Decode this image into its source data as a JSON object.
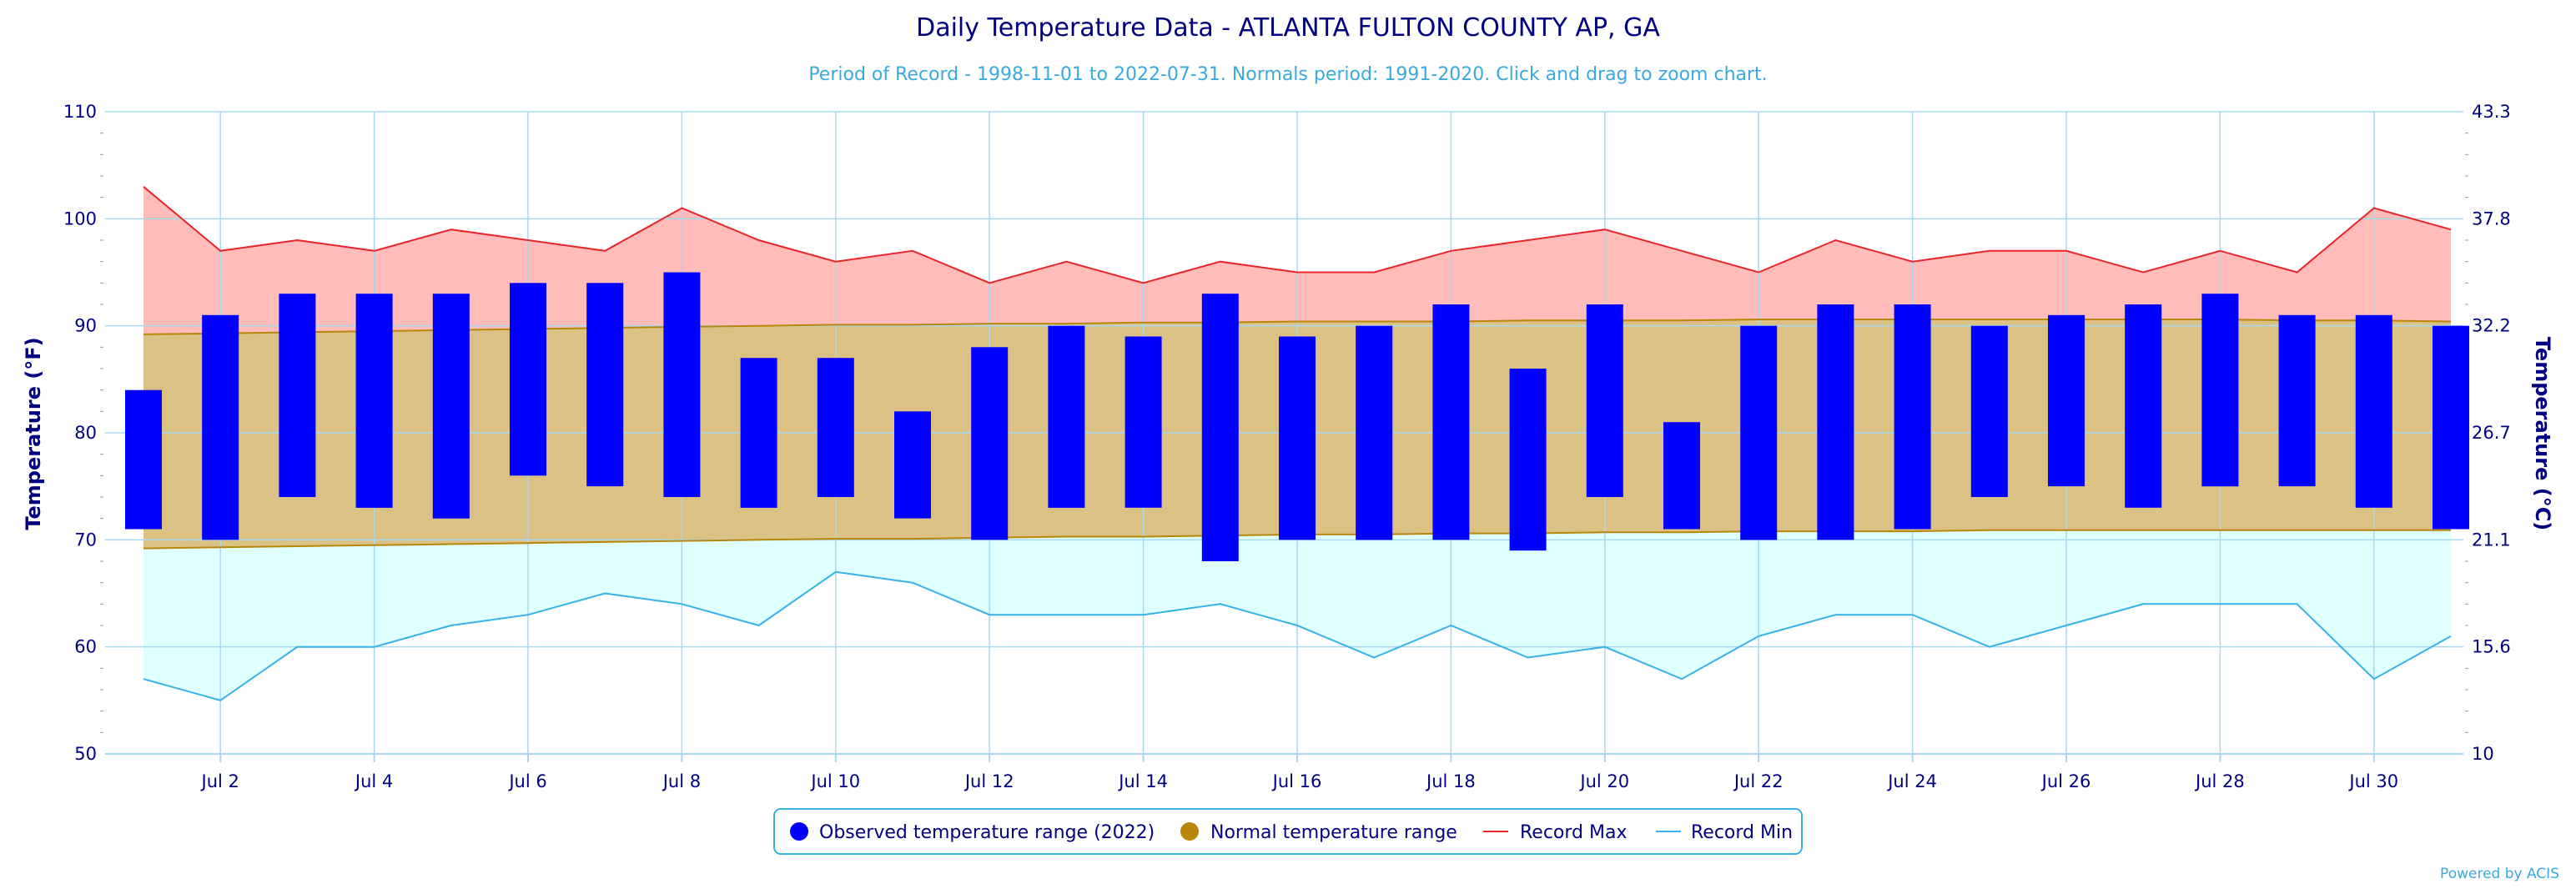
{
  "chart_data": {
    "type": "bar",
    "title": "Daily Temperature Data - ATLANTA FULTON COUNTY AP, GA",
    "subtitle": "Period of Record - 1998-11-01 to 2022-07-31. Normals period: 1991-2020. Click and drag to zoom chart.",
    "ylabel": "Temperature (°F)",
    "ylabel_right": "Temperature (°C)",
    "ylim": [
      50,
      110
    ],
    "y_ticks": [
      "50",
      "60",
      "70",
      "80",
      "90",
      "100",
      "110"
    ],
    "y_ticks_right": [
      "10",
      "15.6",
      "21.1",
      "26.7",
      "32.2",
      "37.8",
      "43.3"
    ],
    "x_tick_labels": [
      "Jul 2",
      "Jul 4",
      "Jul 6",
      "Jul 8",
      "Jul 10",
      "Jul 12",
      "Jul 14",
      "Jul 16",
      "Jul 18",
      "Jul 20",
      "Jul 22",
      "Jul 24",
      "Jul 26",
      "Jul 28",
      "Jul 30"
    ],
    "days": [
      1,
      2,
      3,
      4,
      5,
      6,
      7,
      8,
      9,
      10,
      11,
      12,
      13,
      14,
      15,
      16,
      17,
      18,
      19,
      20,
      21,
      22,
      23,
      24,
      25,
      26,
      27,
      28,
      29,
      30,
      31
    ],
    "observed_low": [
      71,
      70,
      74,
      73,
      72,
      76,
      75,
      74,
      73,
      74,
      72,
      70,
      73,
      73,
      68,
      70,
      70,
      70,
      69,
      74,
      71,
      70,
      70,
      71,
      74,
      75,
      73,
      75,
      75,
      73,
      71
    ],
    "observed_high": [
      84,
      91,
      93,
      93,
      93,
      94,
      94,
      95,
      87,
      87,
      82,
      88,
      90,
      89,
      93,
      89,
      90,
      92,
      86,
      92,
      81,
      90,
      92,
      92,
      90,
      91,
      92,
      93,
      91,
      91,
      90
    ],
    "normal_low": [
      69.2,
      69.3,
      69.4,
      69.5,
      69.6,
      69.7,
      69.8,
      69.9,
      70.0,
      70.1,
      70.1,
      70.2,
      70.3,
      70.3,
      70.4,
      70.5,
      70.5,
      70.6,
      70.6,
      70.7,
      70.7,
      70.8,
      70.8,
      70.8,
      70.9,
      70.9,
      70.9,
      70.9,
      70.9,
      70.9,
      70.9
    ],
    "normal_high": [
      89.2,
      89.3,
      89.4,
      89.5,
      89.6,
      89.7,
      89.8,
      89.9,
      90.0,
      90.1,
      90.1,
      90.2,
      90.2,
      90.3,
      90.3,
      90.4,
      90.4,
      90.4,
      90.5,
      90.5,
      90.5,
      90.6,
      90.6,
      90.6,
      90.6,
      90.6,
      90.6,
      90.6,
      90.5,
      90.5,
      90.4
    ],
    "record_max": [
      103,
      97,
      98,
      97,
      99,
      98,
      97,
      101,
      98,
      96,
      97,
      94,
      96,
      94,
      96,
      95,
      95,
      97,
      98,
      99,
      97,
      95,
      98,
      96,
      97,
      97,
      95,
      97,
      95,
      101,
      99
    ],
    "record_min": [
      57,
      55,
      60,
      60,
      62,
      63,
      65,
      64,
      62,
      67,
      66,
      63,
      63,
      63,
      64,
      62,
      59,
      62,
      59,
      60,
      57,
      61,
      63,
      63,
      60,
      62,
      64,
      64,
      64,
      57,
      61
    ],
    "legend": [
      {
        "label": "Observed temperature range (2022)",
        "color": "#0000ff",
        "symbol": "dot"
      },
      {
        "label": "Normal temperature range",
        "color": "#b8860b",
        "symbol": "dot"
      },
      {
        "label": "Record Max",
        "color": "#e8262a",
        "symbol": "line"
      },
      {
        "label": "Record Min",
        "color": "#35b2e8",
        "symbol": "line"
      }
    ],
    "legend_position": "bottom-center",
    "grid": true,
    "colors": {
      "title": "#000080",
      "subtitle": "#3aa9dc",
      "observed": "#0000ff",
      "normal_fill": "#dcc184",
      "normal_line": "#b8860b",
      "record_max_fill": "#ffbcb8",
      "record_max_line": "#e8262a",
      "record_min_fill": "#e0ffff",
      "record_min_line": "#35b2e8",
      "grid": "#a8d8f0"
    }
  },
  "credit": "Powered by ACIS"
}
